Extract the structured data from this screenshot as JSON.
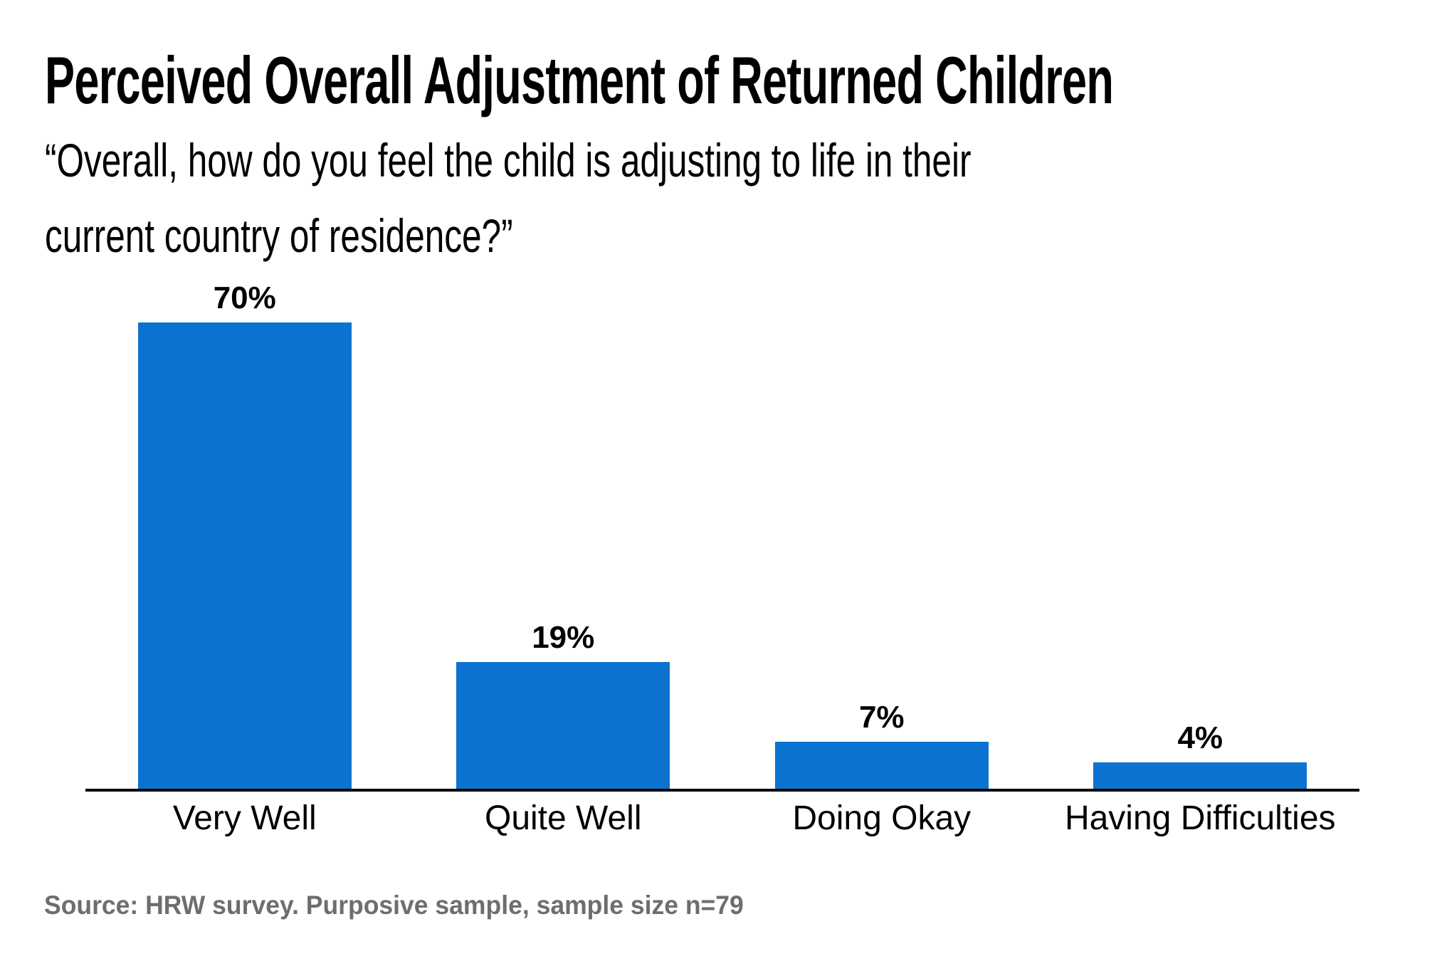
{
  "header": {
    "title": "Perceived Overall Adjustment of Returned Children",
    "subtitle_line1": "“Overall, how do you feel the child is adjusting to life in their",
    "subtitle_line2": "current country of residence?”"
  },
  "chart_data": {
    "type": "bar",
    "title": "Perceived Overall Adjustment of Returned Children",
    "subtitle": "“Overall, how do you feel the child is adjusting to life in their current country of residence?”",
    "categories": [
      "Very Well",
      "Quite Well",
      "Doing Okay",
      "Having Difficulties"
    ],
    "values": [
      70,
      19,
      7,
      4
    ],
    "value_labels": [
      "70%",
      "19%",
      "7%",
      "4%"
    ],
    "xlabel": "",
    "ylabel": "",
    "ylim": [
      0,
      75
    ],
    "grid": false,
    "legend": "none",
    "bar_color": "#0b73cf",
    "axis_color": "#000000",
    "label_color": "#000000"
  },
  "footer": {
    "source": "Source: HRW survey. Purposive sample, sample size n=79",
    "source_color": "#6e6e6e"
  }
}
